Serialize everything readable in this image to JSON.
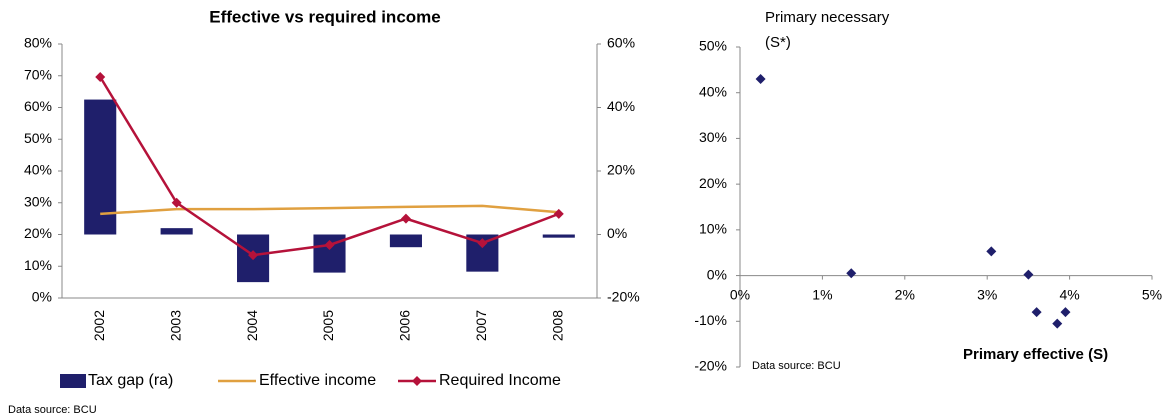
{
  "chart_data": [
    {
      "type": "combo",
      "title": "Effective vs required income",
      "categories": [
        "2002",
        "2003",
        "2004",
        "2005",
        "2006",
        "2007",
        "2008"
      ],
      "series": [
        {
          "name": "Tax gap (ra)",
          "type": "bar",
          "axis": "y2",
          "color": "#1f1f6b",
          "values": [
            42.5,
            2,
            -15,
            -12,
            -4,
            -11.7,
            -1
          ]
        },
        {
          "name": "Effective income",
          "type": "line",
          "color": "#e0a040",
          "values": [
            26.5,
            28,
            28,
            28.3,
            28.7,
            29,
            27
          ]
        },
        {
          "name": "Required Income",
          "type": "line",
          "marker": "diamond",
          "color": "#b5123a",
          "values": [
            69.6,
            30,
            13.5,
            16.7,
            25,
            17.3,
            26.5
          ]
        }
      ],
      "ylim": [
        0,
        80
      ],
      "yticks": [
        {
          "value": 0,
          "label": "0%"
        },
        {
          "value": 10,
          "label": "10%"
        },
        {
          "value": 20,
          "label": "20%"
        },
        {
          "value": 30,
          "label": "30%"
        },
        {
          "value": 40,
          "label": "40%"
        },
        {
          "value": 50,
          "label": "50%"
        },
        {
          "value": 60,
          "label": "60%"
        },
        {
          "value": 70,
          "label": "70%"
        },
        {
          "value": 80,
          "label": "80%"
        }
      ],
      "y2lim": [
        -20,
        60
      ],
      "y2ticks": [
        {
          "value": -20,
          "label": "-20%"
        },
        {
          "value": 0,
          "label": "0%"
        },
        {
          "value": 20,
          "label": "20%"
        },
        {
          "value": 40,
          "label": "40%"
        },
        {
          "value": 60,
          "label": "60%"
        }
      ],
      "source": "Data source: BCU"
    },
    {
      "type": "scatter",
      "y_label": "Primary necessary",
      "y_label_2": "(S*)",
      "x_label": "Primary effective (S)",
      "series": [
        {
          "color": "#1f1f6b",
          "marker": "diamond",
          "x": [
            0.25,
            1.35,
            3.05,
            3.5,
            3.6,
            3.95,
            3.85
          ],
          "values": [
            43,
            0.5,
            5.3,
            0.2,
            -8,
            -8,
            -10.5
          ]
        }
      ],
      "xlim": [
        0,
        5
      ],
      "xticks": [
        {
          "value": 0,
          "label": "0%"
        },
        {
          "value": 1,
          "label": "1%"
        },
        {
          "value": 2,
          "label": "2%"
        },
        {
          "value": 3,
          "label": "3%"
        },
        {
          "value": 4,
          "label": "4%"
        },
        {
          "value": 5,
          "label": "5%"
        }
      ],
      "ylim": [
        -20,
        50
      ],
      "yticks": [
        {
          "value": -20,
          "label": "-20%"
        },
        {
          "value": -10,
          "label": "-10%"
        },
        {
          "value": 0,
          "label": "0%"
        },
        {
          "value": 10,
          "label": "10%"
        },
        {
          "value": 20,
          "label": "20%"
        },
        {
          "value": 30,
          "label": "30%"
        },
        {
          "value": 40,
          "label": "40%"
        },
        {
          "value": 50,
          "label": "50%"
        }
      ],
      "source": "Data source: BCU"
    }
  ]
}
